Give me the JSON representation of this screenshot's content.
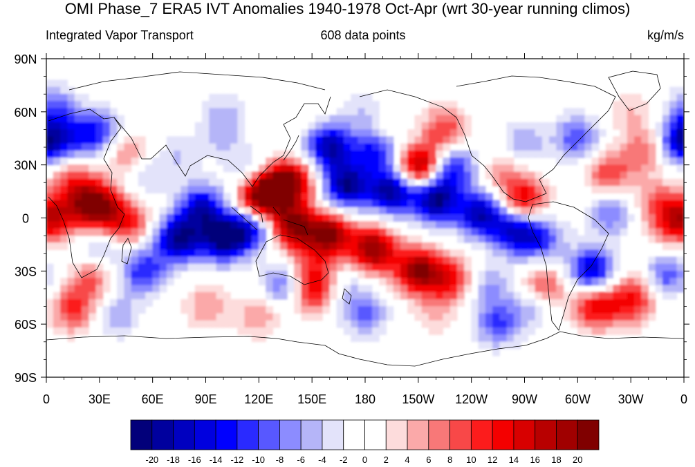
{
  "title": "OMI Phase_7 ERA5 IVT Anomalies 1940-1978 Oct-Apr (wrt 30-year running climos)",
  "subtitle_left": "Integrated Vapor Transport",
  "subtitle_center": "608 data points",
  "subtitle_right": "kg/m/s",
  "chart_data": {
    "type": "heatmap",
    "title": "OMI Phase_7 ERA5 IVT Anomalies 1940-1978 Oct-Apr (wrt 30-year running climos)",
    "variable": "Integrated Vapor Transport",
    "units": "kg/m/s",
    "n_points": 608,
    "projection": "cylindrical equidistant, central longitude 180",
    "xlim": [
      0,
      360
    ],
    "ylim": [
      -90,
      90
    ],
    "x_ticks": [
      {
        "lon": 0,
        "label": "0"
      },
      {
        "lon": 30,
        "label": "30E"
      },
      {
        "lon": 60,
        "label": "60E"
      },
      {
        "lon": 90,
        "label": "90E"
      },
      {
        "lon": 120,
        "label": "120E"
      },
      {
        "lon": 150,
        "label": "150E"
      },
      {
        "lon": 180,
        "label": "180"
      },
      {
        "lon": 210,
        "label": "150W"
      },
      {
        "lon": 240,
        "label": "120W"
      },
      {
        "lon": 270,
        "label": "90W"
      },
      {
        "lon": 300,
        "label": "60W"
      },
      {
        "lon": 330,
        "label": "30W"
      },
      {
        "lon": 360,
        "label": "0"
      }
    ],
    "y_ticks": [
      {
        "lat": 90,
        "label": "90N"
      },
      {
        "lat": 60,
        "label": "60N"
      },
      {
        "lat": 30,
        "label": "30N"
      },
      {
        "lat": 0,
        "label": "0"
      },
      {
        "lat": -30,
        "label": "30S"
      },
      {
        "lat": -60,
        "label": "60S"
      },
      {
        "lat": -90,
        "label": "90S"
      }
    ],
    "colorbar": {
      "levels": [
        -20,
        -18,
        -16,
        -14,
        -12,
        -10,
        -8,
        -6,
        -4,
        -2,
        0,
        2,
        4,
        6,
        8,
        10,
        12,
        14,
        16,
        18,
        20
      ],
      "colors": [
        "#02007a",
        "#00009e",
        "#0000c0",
        "#0000df",
        "#0000ff",
        "#2a2aff",
        "#5858ff",
        "#8c8cff",
        "#b5b5f8",
        "#e3e3fa",
        "#ffffff",
        "#ffffff",
        "#fddcdc",
        "#fba9a9",
        "#f87878",
        "#f84848",
        "#fc1c1c",
        "#f40000",
        "#d80000",
        "#b80000",
        "#a00000",
        "#800000"
      ]
    },
    "features": [
      {
        "lon": 140,
        "lat": 60,
        "value": 2
      },
      {
        "lon": 2,
        "lat": 45,
        "value": -10
      },
      {
        "lon": 5,
        "lat": 62,
        "value": -8
      },
      {
        "lon": 20,
        "lat": 45,
        "value": -8
      },
      {
        "lon": 30,
        "lat": 50,
        "value": -8
      },
      {
        "lon": 48,
        "lat": 35,
        "value": 8
      },
      {
        "lon": 15,
        "lat": 22,
        "value": 8
      },
      {
        "lon": 25,
        "lat": 10,
        "value": 10
      },
      {
        "lon": 100,
        "lat": 60,
        "value": -4
      },
      {
        "lon": 55,
        "lat": 25,
        "value": -6
      },
      {
        "lon": 75,
        "lat": 35,
        "value": -4
      },
      {
        "lon": 100,
        "lat": 45,
        "value": -4
      },
      {
        "lon": 10,
        "lat": 2,
        "value": 10
      },
      {
        "lon": 30,
        "lat": 5,
        "value": 14
      },
      {
        "lon": 45,
        "lat": -3,
        "value": 12
      },
      {
        "lon": 30,
        "lat": -15,
        "value": -6
      },
      {
        "lon": 25,
        "lat": -35,
        "value": 8
      },
      {
        "lon": 55,
        "lat": -30,
        "value": -12
      },
      {
        "lon": 75,
        "lat": -12,
        "value": -20
      },
      {
        "lon": 100,
        "lat": -12,
        "value": -20
      },
      {
        "lon": 88,
        "lat": 5,
        "value": -16
      },
      {
        "lon": 115,
        "lat": -5,
        "value": -16
      },
      {
        "lon": 115,
        "lat": 25,
        "value": -6
      },
      {
        "lon": 125,
        "lat": 15,
        "value": 20
      },
      {
        "lon": 138,
        "lat": 20,
        "value": 18
      },
      {
        "lon": 118,
        "lat": 8,
        "value": 12
      },
      {
        "lon": 140,
        "lat": -5,
        "value": 20
      },
      {
        "lon": 160,
        "lat": -10,
        "value": 20
      },
      {
        "lon": 185,
        "lat": -18,
        "value": 20
      },
      {
        "lon": 210,
        "lat": -30,
        "value": 20
      },
      {
        "lon": 228,
        "lat": -35,
        "value": 12
      },
      {
        "lon": 150,
        "lat": -30,
        "value": 8
      },
      {
        "lon": 150,
        "lat": -42,
        "value": 12
      },
      {
        "lon": 170,
        "lat": -40,
        "value": -4
      },
      {
        "lon": 135,
        "lat": -38,
        "value": -10
      },
      {
        "lon": 160,
        "lat": 40,
        "value": -18
      },
      {
        "lon": 185,
        "lat": 38,
        "value": -12
      },
      {
        "lon": 200,
        "lat": 42,
        "value": -6
      },
      {
        "lon": 170,
        "lat": 18,
        "value": -20
      },
      {
        "lon": 195,
        "lat": 15,
        "value": -20
      },
      {
        "lon": 220,
        "lat": 10,
        "value": -20
      },
      {
        "lon": 245,
        "lat": 2,
        "value": -18
      },
      {
        "lon": 265,
        "lat": -8,
        "value": -16
      },
      {
        "lon": 280,
        "lat": -12,
        "value": -10
      },
      {
        "lon": 195,
        "lat": 48,
        "value": 6
      },
      {
        "lon": 225,
        "lat": 50,
        "value": 10
      },
      {
        "lon": 210,
        "lat": 30,
        "value": 20
      },
      {
        "lon": 180,
        "lat": 60,
        "value": -4
      },
      {
        "lon": 230,
        "lat": 28,
        "value": -12
      },
      {
        "lon": 258,
        "lat": 25,
        "value": 6
      },
      {
        "lon": 270,
        "lat": 10,
        "value": 14
      },
      {
        "lon": 270,
        "lat": 42,
        "value": -6
      },
      {
        "lon": 300,
        "lat": 45,
        "value": -10
      },
      {
        "lon": 318,
        "lat": 25,
        "value": 10
      },
      {
        "lon": 338,
        "lat": 38,
        "value": 8
      },
      {
        "lon": 358,
        "lat": 42,
        "value": -10
      },
      {
        "lon": 330,
        "lat": 60,
        "value": 4
      },
      {
        "lon": 318,
        "lat": 2,
        "value": -8
      },
      {
        "lon": 345,
        "lat": 10,
        "value": 6
      },
      {
        "lon": 355,
        "lat": -2,
        "value": 14
      },
      {
        "lon": 308,
        "lat": -30,
        "value": -16
      },
      {
        "lon": 335,
        "lat": -40,
        "value": 4
      },
      {
        "lon": 350,
        "lat": -33,
        "value": -10
      },
      {
        "lon": 280,
        "lat": -40,
        "value": 12
      },
      {
        "lon": 310,
        "lat": -50,
        "value": 14
      },
      {
        "lon": 330,
        "lat": -48,
        "value": 10
      },
      {
        "lon": 275,
        "lat": -48,
        "value": -8
      },
      {
        "lon": 250,
        "lat": -38,
        "value": -6
      },
      {
        "lon": 255,
        "lat": -60,
        "value": -10
      },
      {
        "lon": 180,
        "lat": -55,
        "value": -8
      },
      {
        "lon": 220,
        "lat": -55,
        "value": 4
      },
      {
        "lon": 15,
        "lat": -52,
        "value": 10
      },
      {
        "lon": 40,
        "lat": -55,
        "value": -6
      },
      {
        "lon": 90,
        "lat": -50,
        "value": 6
      },
      {
        "lon": 120,
        "lat": -55,
        "value": 6
      }
    ]
  }
}
